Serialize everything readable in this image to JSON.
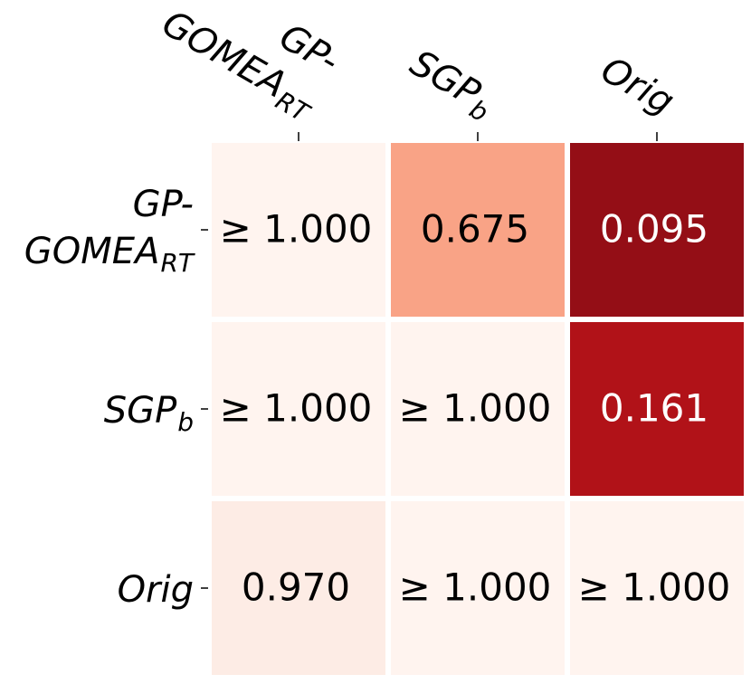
{
  "chart_data": {
    "type": "heatmap",
    "categories": [
      "GP-GOMEA",
      "SGP",
      "Orig"
    ],
    "category_subscripts": [
      "RT",
      "b",
      null
    ],
    "values": [
      [
        1.0,
        0.675,
        0.095
      ],
      [
        1.0,
        1.0,
        0.161
      ],
      [
        0.97,
        1.0,
        1.0
      ]
    ],
    "value_labels": [
      [
        "≥ 1.000",
        "0.675",
        "0.095"
      ],
      [
        "≥ 1.000",
        "≥ 1.000",
        "0.161"
      ],
      [
        "0.970",
        "≥ 1.000",
        "≥ 1.000"
      ]
    ],
    "cell_colors": [
      [
        "#fff4ef",
        "#f9a386",
        "#940e16"
      ],
      [
        "#fff4ef",
        "#fff4ef",
        "#b11218"
      ],
      [
        "#fdece5",
        "#fff4ef",
        "#fff4ef"
      ]
    ]
  }
}
